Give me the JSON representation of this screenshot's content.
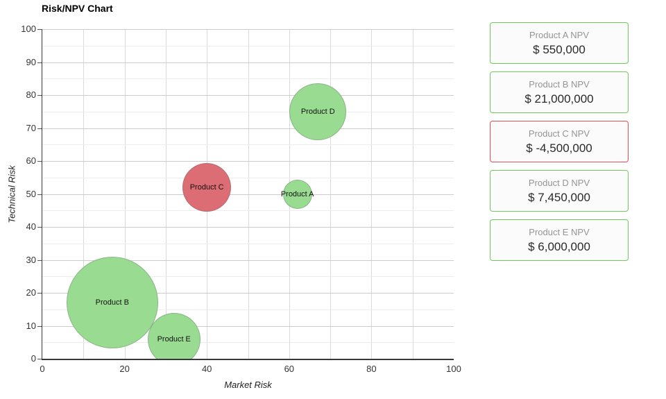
{
  "title": "Risk/NPV Chart",
  "chart_data": {
    "type": "scatter",
    "subtype": "bubble",
    "title": "Risk/NPV Chart",
    "xlabel": "Market Risk",
    "ylabel": "Technical Risk",
    "xlim": [
      0,
      100
    ],
    "ylim": [
      0,
      100
    ],
    "x_ticks": [
      0,
      20,
      40,
      60,
      80,
      100
    ],
    "y_ticks": [
      0,
      10,
      20,
      30,
      40,
      50,
      60,
      70,
      80,
      90,
      100
    ],
    "grid": {
      "x_step": 10,
      "y_minor_step": 5,
      "y_major_step": 10,
      "grid_on": true
    },
    "legend_position": "none",
    "points": [
      {
        "label": "Product A",
        "market_risk": 62,
        "technical_risk": 50,
        "npv": 550000,
        "radius_px": 21,
        "color_key": "green"
      },
      {
        "label": "Product B",
        "market_risk": 17,
        "technical_risk": 17,
        "npv": 21000000,
        "radius_px": 66,
        "color_key": "green"
      },
      {
        "label": "Product C",
        "market_risk": 40,
        "technical_risk": 52,
        "npv": -4500000,
        "radius_px": 35,
        "color_key": "red"
      },
      {
        "label": "Product D",
        "market_risk": 67,
        "technical_risk": 75,
        "npv": 7450000,
        "radius_px": 41,
        "color_key": "green"
      },
      {
        "label": "Product E",
        "market_risk": 32,
        "technical_risk": 6,
        "npv": 6000000,
        "radius_px": 38,
        "color_key": "green"
      }
    ]
  },
  "cards": [
    {
      "title": "Product A NPV",
      "value": "$ 550,000",
      "status": "positive"
    },
    {
      "title": "Product B NPV",
      "value": "$ 21,000,000",
      "status": "positive"
    },
    {
      "title": "Product C NPV",
      "value": "$ -4,500,000",
      "status": "negative"
    },
    {
      "title": "Product D NPV",
      "value": "$ 7,450,000",
      "status": "positive"
    },
    {
      "title": "Product E NPV",
      "value": "$ 6,000,000",
      "status": "positive"
    }
  ],
  "colors": {
    "bubble_green": "#9adb92",
    "bubble_red": "#dd6d74",
    "card_border_green": "#6ecb5b",
    "card_border_red": "#e14f4f",
    "card_bg": "#fbfbfb",
    "card_title_text": "#949494",
    "card_value_text": "#2a2a2a",
    "grid_major": "#cccccc",
    "grid_minor": "#ededed",
    "grid_vertical": "#d9d9d9",
    "axis_line": "#383838",
    "axis_text": "#333333"
  }
}
